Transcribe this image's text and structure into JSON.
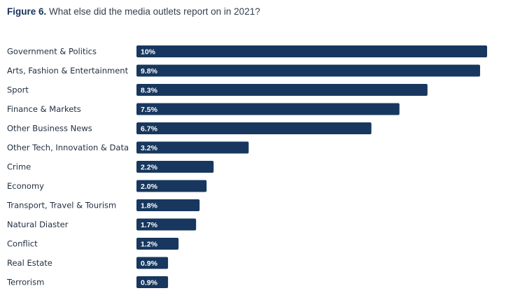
{
  "header": {
    "figure_label": "Figure 6.",
    "title": "What else did the media outlets report on in 2021?"
  },
  "colors": {
    "bar": "#17375e",
    "label": "#1f2d40"
  },
  "chart_data": {
    "type": "bar",
    "orientation": "horizontal",
    "title": "What else did the media outlets report on in 2021?",
    "categories": [
      "Government & Politics",
      "Arts, Fashion & Entertainment",
      "Sport",
      "Finance & Markets",
      "Other Business News",
      "Other Tech, Innovation & Data",
      "Crime",
      "Economy",
      "Transport, Travel & Tourism",
      "Natural Diaster",
      "Conflict",
      "Real Estate",
      "Terrorism"
    ],
    "values": [
      10,
      9.8,
      8.3,
      7.5,
      6.7,
      3.2,
      2.2,
      2.0,
      1.8,
      1.7,
      1.2,
      0.9,
      0.9
    ],
    "value_labels": [
      "10%",
      "9.8%",
      "8.3%",
      "7.5%",
      "6.7%",
      "3.2%",
      "2.2%",
      "2.0%",
      "1.8%",
      "1.7%",
      "1.2%",
      "0.9%",
      "0.9%"
    ],
    "xlim": [
      0,
      10
    ],
    "grid": false,
    "legend": "none"
  }
}
